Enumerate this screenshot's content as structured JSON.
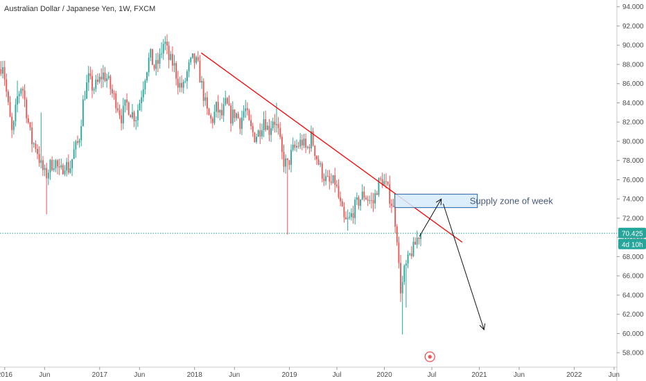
{
  "chart_data": {
    "type": "candlestick",
    "title": "Australian Dollar / Japanese Yen, 1W, FXCM",
    "y_ticks": [
      "58.000",
      "60.000",
      "62.000",
      "64.000",
      "66.000",
      "68.000",
      "70.000",
      "72.000",
      "74.000",
      "76.000",
      "78.000",
      "80.000",
      "82.000",
      "84.000",
      "86.000",
      "88.000",
      "90.000",
      "92.000",
      "94.000"
    ],
    "ylim": [
      56.5,
      94.7
    ],
    "x_ticks": [
      {
        "label": "2016",
        "t": 2016.0
      },
      {
        "label": "Jun",
        "t": 2016.42
      },
      {
        "label": "2017",
        "t": 2017.0
      },
      {
        "label": "Jun",
        "t": 2017.42
      },
      {
        "label": "2018",
        "t": 2018.0
      },
      {
        "label": "Jun",
        "t": 2018.42
      },
      {
        "label": "2019",
        "t": 2019.0
      },
      {
        "label": "Jul",
        "t": 2019.5
      },
      {
        "label": "2020",
        "t": 2020.0
      },
      {
        "label": "Jul",
        "t": 2020.5
      },
      {
        "label": "2021",
        "t": 2021.0
      },
      {
        "label": "Jun",
        "t": 2021.42
      },
      {
        "label": "2022",
        "t": 2022.0
      },
      {
        "label": "Jun",
        "t": 2022.42
      }
    ],
    "xlim": [
      2015.95,
      2022.45
    ],
    "price_path": [
      [
        2015.96,
        87.5
      ],
      [
        2016.0,
        88.2
      ],
      [
        2016.05,
        84.0
      ],
      [
        2016.1,
        80.5
      ],
      [
        2016.15,
        84.5
      ],
      [
        2016.2,
        86.0
      ],
      [
        2016.25,
        83.0
      ],
      [
        2016.3,
        80.0
      ],
      [
        2016.35,
        79.5
      ],
      [
        2016.4,
        77.5
      ],
      [
        2016.45,
        76.3
      ],
      [
        2016.5,
        77.5
      ],
      [
        2016.55,
        78.0
      ],
      [
        2016.6,
        76.5
      ],
      [
        2016.65,
        77.8
      ],
      [
        2016.7,
        77.0
      ],
      [
        2016.75,
        79.0
      ],
      [
        2016.8,
        80.0
      ],
      [
        2016.85,
        84.5
      ],
      [
        2016.9,
        86.5
      ],
      [
        2016.95,
        85.5
      ],
      [
        2017.0,
        86.0
      ],
      [
        2017.05,
        87.0
      ],
      [
        2017.1,
        86.5
      ],
      [
        2017.15,
        85.0
      ],
      [
        2017.2,
        84.0
      ],
      [
        2017.25,
        82.5
      ],
      [
        2017.3,
        84.0
      ],
      [
        2017.35,
        83.0
      ],
      [
        2017.4,
        82.5
      ],
      [
        2017.45,
        84.5
      ],
      [
        2017.5,
        87.0
      ],
      [
        2017.55,
        89.0
      ],
      [
        2017.6,
        87.5
      ],
      [
        2017.65,
        88.5
      ],
      [
        2017.7,
        90.5
      ],
      [
        2017.75,
        88.5
      ],
      [
        2017.8,
        88.0
      ],
      [
        2017.85,
        86.0
      ],
      [
        2017.9,
        85.5
      ],
      [
        2017.95,
        87.5
      ],
      [
        2018.0,
        88.5
      ],
      [
        2018.05,
        88.0
      ],
      [
        2018.1,
        85.5
      ],
      [
        2018.15,
        83.0
      ],
      [
        2018.2,
        82.0
      ],
      [
        2018.25,
        83.5
      ],
      [
        2018.3,
        82.5
      ],
      [
        2018.35,
        84.0
      ],
      [
        2018.4,
        82.5
      ],
      [
        2018.45,
        83.0
      ],
      [
        2018.5,
        82.0
      ],
      [
        2018.55,
        83.5
      ],
      [
        2018.6,
        81.5
      ],
      [
        2018.65,
        80.5
      ],
      [
        2018.7,
        81.0
      ],
      [
        2018.75,
        82.5
      ],
      [
        2018.8,
        81.0
      ],
      [
        2018.85,
        82.5
      ],
      [
        2018.9,
        81.0
      ],
      [
        2018.95,
        78.0
      ],
      [
        2019.0,
        77.5
      ],
      [
        2019.05,
        79.0
      ],
      [
        2019.1,
        79.5
      ],
      [
        2019.15,
        80.0
      ],
      [
        2019.2,
        79.0
      ],
      [
        2019.25,
        80.5
      ],
      [
        2019.3,
        78.5
      ],
      [
        2019.35,
        77.0
      ],
      [
        2019.4,
        76.0
      ],
      [
        2019.45,
        75.5
      ],
      [
        2019.5,
        75.8
      ],
      [
        2019.55,
        73.5
      ],
      [
        2019.6,
        71.5
      ],
      [
        2019.65,
        71.8
      ],
      [
        2019.7,
        73.0
      ],
      [
        2019.75,
        73.8
      ],
      [
        2019.8,
        74.5
      ],
      [
        2019.85,
        74.0
      ],
      [
        2019.9,
        73.5
      ],
      [
        2019.95,
        75.5
      ],
      [
        2020.0,
        76.0
      ],
      [
        2020.05,
        75.0
      ],
      [
        2020.1,
        73.5
      ],
      [
        2020.13,
        72.0
      ],
      [
        2020.16,
        69.5
      ],
      [
        2020.18,
        65.0
      ],
      [
        2020.2,
        64.5
      ],
      [
        2020.23,
        66.5
      ],
      [
        2020.27,
        67.5
      ],
      [
        2020.3,
        68.5
      ],
      [
        2020.33,
        68.8
      ],
      [
        2020.37,
        70.1
      ],
      [
        2020.39,
        70.4
      ]
    ],
    "highs": [
      [
        2016.13,
        86.3
      ],
      [
        2016.38,
        83.0
      ],
      [
        2017.65,
        90.3
      ],
      [
        2018.87,
        84.0
      ],
      [
        2019.25,
        80.8
      ],
      [
        2020.0,
        76.6
      ],
      [
        2020.12,
        74.5
      ]
    ],
    "lows": [
      [
        2016.45,
        72.4
      ],
      [
        2018.97,
        70.3
      ],
      [
        2019.62,
        70.7
      ],
      [
        2020.2,
        59.9
      ],
      [
        2020.22,
        62.7
      ]
    ],
    "current_price": "70.425",
    "countdown": "4d 10h",
    "trendline": {
      "t1": 2018.07,
      "p1": 89.2,
      "t2": 2020.82,
      "p2": 69.5
    },
    "supply_zone": {
      "t1": 2020.11,
      "t2": 2020.98,
      "p_low": 73.1,
      "p_high": 74.5,
      "label": "Supply zone of week"
    },
    "arrows": [
      {
        "from": [
          2020.37,
          70.1
        ],
        "to": [
          2020.6,
          74.0
        ]
      },
      {
        "from": [
          2020.62,
          73.5
        ],
        "to": [
          2021.05,
          60.4
        ]
      }
    ],
    "event_marker_t": 2020.48,
    "colors": {
      "up": "#26a69a",
      "down": "#ef5350",
      "trend": "#ff0000",
      "zone_fill": "#d6ebfa",
      "zone_stroke": "#1a5fa8",
      "price_line": "#26a69a",
      "axis_text": "#4a4a4a",
      "marker": "#ef5350"
    }
  }
}
